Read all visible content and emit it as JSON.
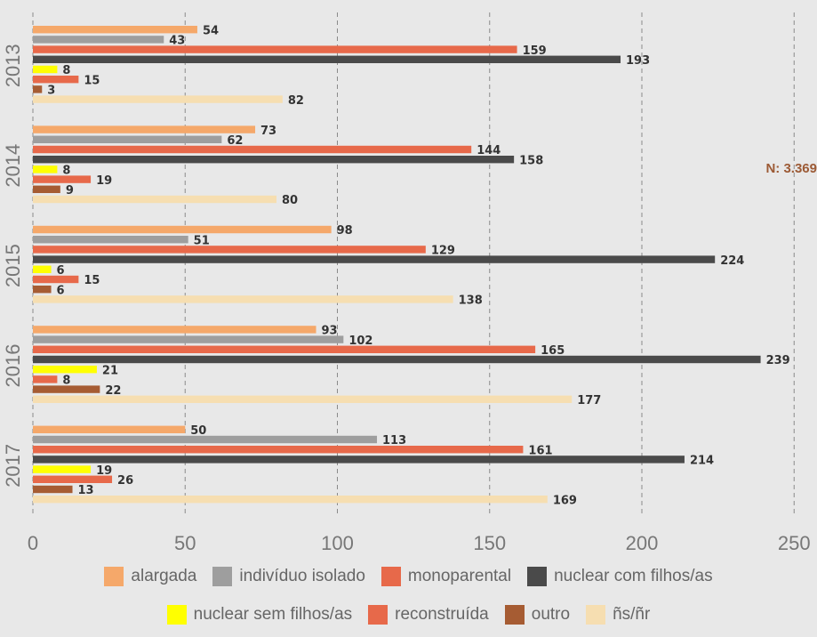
{
  "annotation": "N: 3.369",
  "colors": {
    "alargada": "#f5a86a",
    "individuo_isolado": "#9e9e9e",
    "monoparental": "#e7694a",
    "nuclear_com": "#4a4a4a",
    "nuclear_sem": "#ffff00",
    "reconstruida": "#e7694a",
    "outro": "#a65c33",
    "ns_nr": "#f6deb1"
  },
  "chart_data": {
    "type": "bar",
    "orientation": "horizontal",
    "categories": [
      "2013",
      "2014",
      "2015",
      "2016",
      "2017"
    ],
    "xlim": [
      0,
      250
    ],
    "xticks": [
      0,
      50,
      100,
      150,
      200,
      250
    ],
    "grid": true,
    "legend_position": "bottom",
    "series": [
      {
        "name": "alargada",
        "color": "#f5a86a",
        "values": [
          54,
          73,
          98,
          93,
          50
        ]
      },
      {
        "name": "indivíduo isolado",
        "color": "#9e9e9e",
        "values": [
          43,
          62,
          51,
          102,
          113
        ]
      },
      {
        "name": "monoparental",
        "color": "#e7694a",
        "values": [
          159,
          144,
          129,
          165,
          161
        ]
      },
      {
        "name": "nuclear com filhos/as",
        "color": "#4a4a4a",
        "values": [
          193,
          158,
          224,
          239,
          214
        ]
      },
      {
        "name": "nuclear sem filhos/as",
        "color": "#ffff00",
        "values": [
          8,
          8,
          6,
          21,
          19
        ]
      },
      {
        "name": "reconstruída",
        "color": "#e7694a",
        "values": [
          15,
          19,
          15,
          8,
          26
        ]
      },
      {
        "name": "outro",
        "color": "#a65c33",
        "values": [
          3,
          9,
          6,
          22,
          13
        ]
      },
      {
        "name": "ñs/ñr",
        "color": "#f6deb1",
        "values": [
          82,
          80,
          138,
          177,
          169
        ]
      }
    ]
  }
}
